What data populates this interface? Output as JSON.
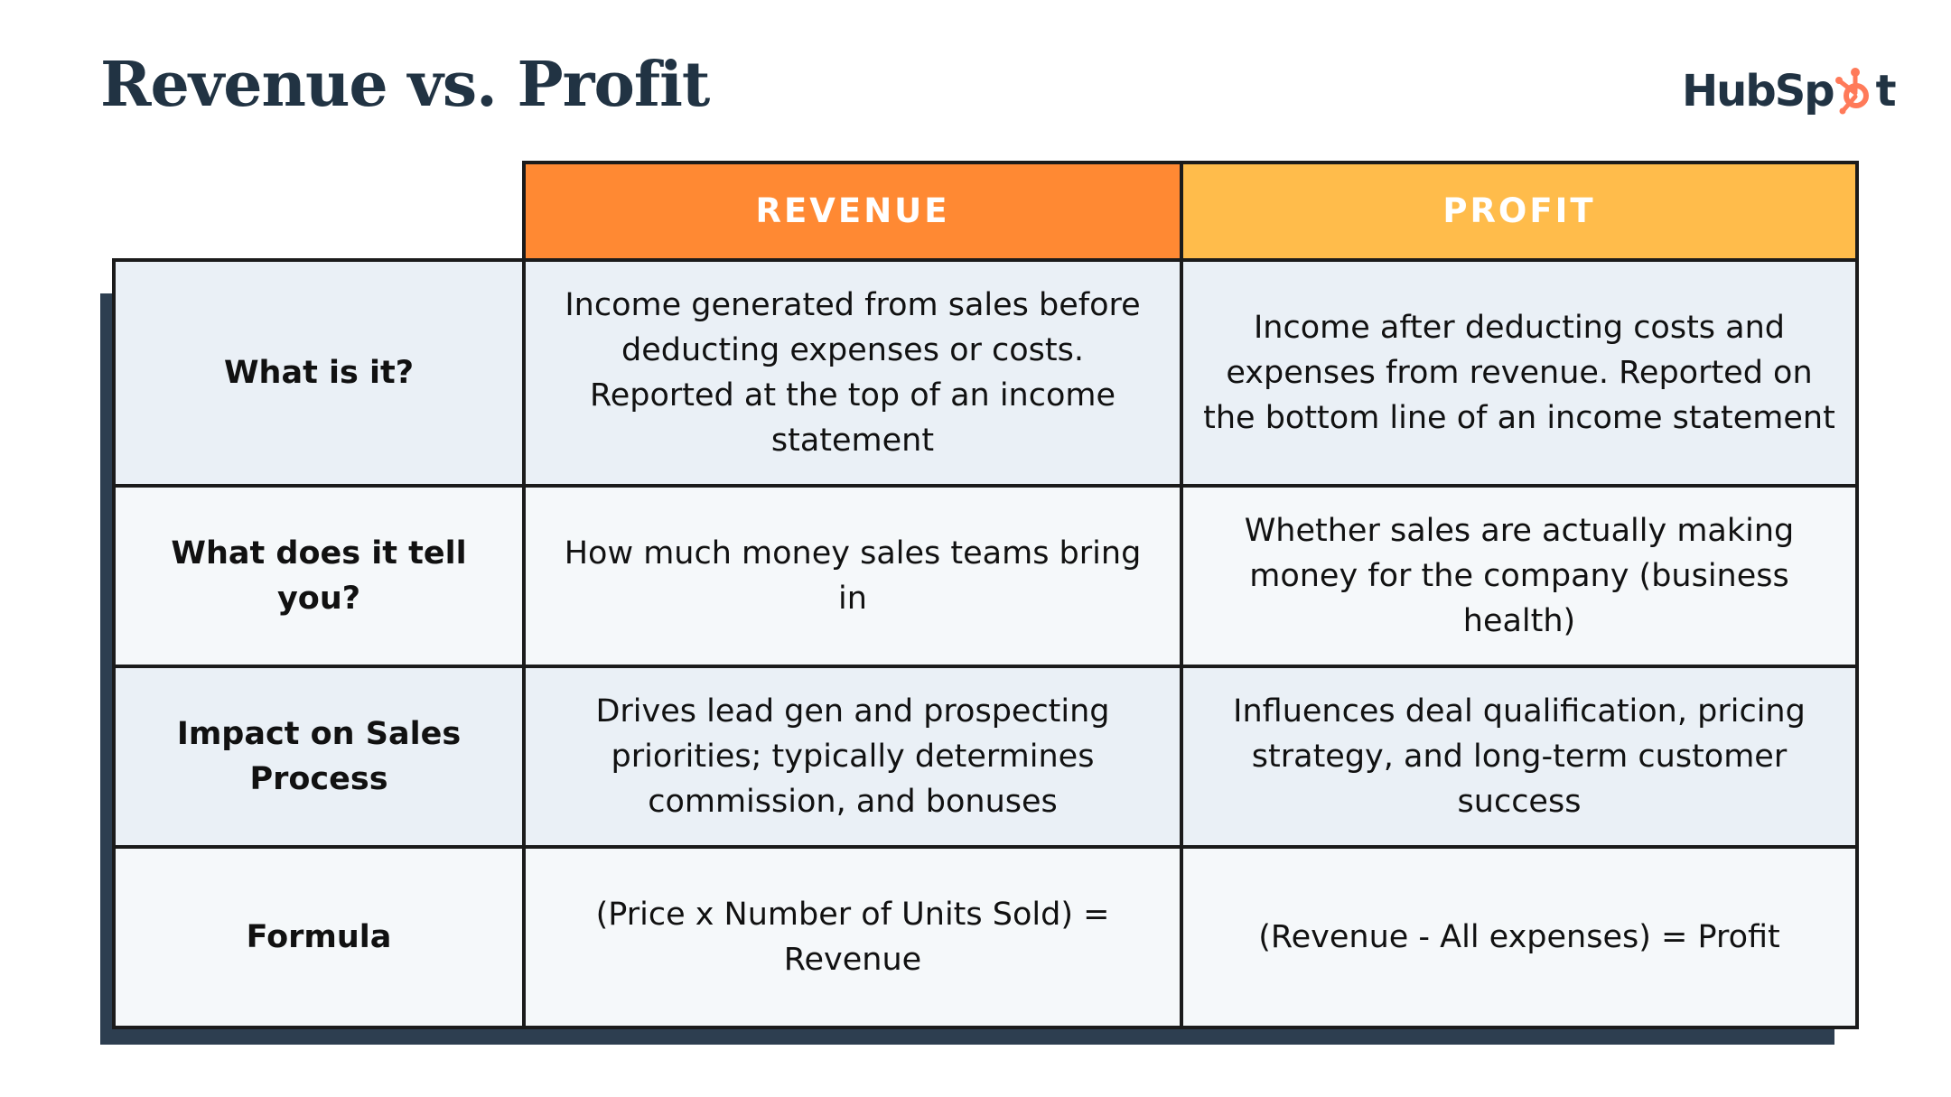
{
  "title": "Revenue vs. Profit",
  "brand": {
    "logo_prefix": "HubSp",
    "logo_suffix": "t",
    "logo_icon": "sprocket-icon",
    "accent_color": "#ff7a59"
  },
  "table": {
    "headers": [
      "REVENUE",
      "PROFIT"
    ],
    "header_colors": [
      "#ff8933",
      "#ffbc4b"
    ],
    "rows": [
      {
        "label": "What is it?",
        "revenue": "Income generated from sales before deducting expenses or costs. Reported at the top of an income statement",
        "profit": "Income after deducting costs and expenses from revenue. Reported on the bottom line of an income statement"
      },
      {
        "label": "What does it tell you?",
        "revenue": "How much money sales teams bring in",
        "profit": "Whether sales are actually making money for the company (business health)"
      },
      {
        "label": "Impact on Sales Process",
        "revenue": "Drives lead gen and prospecting priorities; typically determines commission, and bonuses",
        "profit": "Influences deal qualification, pricing strategy, and long-term customer success"
      },
      {
        "label": "Formula",
        "revenue": "(Price x Number of Units Sold) = Revenue",
        "profit": "(Revenue - All expenses) = Profit"
      }
    ]
  }
}
